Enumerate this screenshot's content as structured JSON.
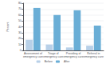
{
  "chart_data": {
    "type": "bar",
    "categories": [
      "Assessment of\nemergency care",
      "Triage of\nemergency care",
      "Providing of\nemergency care",
      "Referral in\nemergency care"
    ],
    "series": [
      {
        "name": "Before",
        "color": "#b8d0e8",
        "values": [
          18,
          10,
          5,
          8
        ]
      },
      {
        "name": "After",
        "color": "#6aaed6",
        "values": [
          72,
          60,
          68,
          42
        ]
      }
    ],
    "ylabel": "Percent",
    "ylim": [
      0,
      80
    ],
    "yticks": [
      0,
      10,
      20,
      30,
      40,
      50,
      60,
      70,
      80
    ],
    "grid": true,
    "legend": "bottom"
  }
}
